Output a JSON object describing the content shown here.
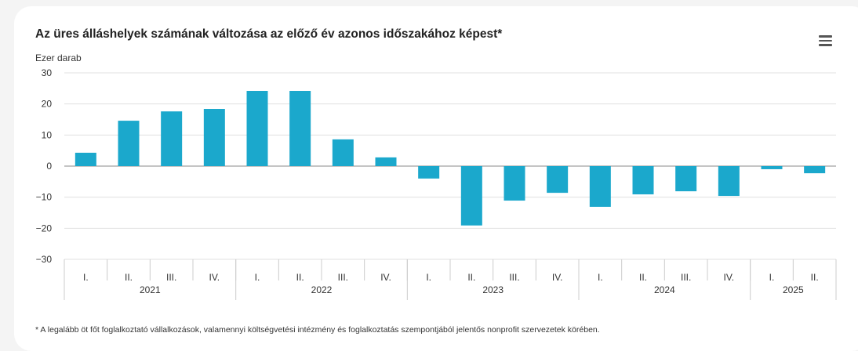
{
  "header": {
    "title": "Az üres álláshelyek számának változása az előző év azonos időszakához képest*",
    "menu_icon": "hamburger-menu-icon"
  },
  "footnote": "* A legalább öt főt foglalkoztató vállalkozások, valamennyi költségvetési intézmény és foglalkoztatás szempontjából jelentős nonprofit szervezetek körében.",
  "chart_data": {
    "type": "bar",
    "title": "Az üres álláshelyek számának változása az előző év azonos időszakához képest*",
    "ylabel": "Ezer darab",
    "ylim": [
      -30,
      30
    ],
    "yticks": [
      30,
      20,
      10,
      0,
      -10,
      -20,
      -30
    ],
    "ytick_labels": [
      "30",
      "20",
      "10",
      "0",
      "−10",
      "−20",
      "−30"
    ],
    "grid": true,
    "bar_color": "#1ba8cc",
    "categories": [
      "I.",
      "II.",
      "III.",
      "IV.",
      "I.",
      "II.",
      "III.",
      "IV.",
      "I.",
      "II.",
      "III.",
      "IV.",
      "I.",
      "II.",
      "III.",
      "IV.",
      "I.",
      "II."
    ],
    "groups": [
      {
        "label": "2021",
        "count": 4
      },
      {
        "label": "2022",
        "count": 4
      },
      {
        "label": "2023",
        "count": 4
      },
      {
        "label": "2024",
        "count": 4
      },
      {
        "label": "2025",
        "count": 2
      }
    ],
    "values": [
      4.3,
      14.6,
      17.6,
      18.4,
      24.2,
      24.2,
      8.6,
      2.8,
      -4.0,
      -19.1,
      -11.1,
      -8.6,
      -13.1,
      -9.1,
      -8.1,
      -9.6,
      -1.0,
      -2.3
    ]
  }
}
